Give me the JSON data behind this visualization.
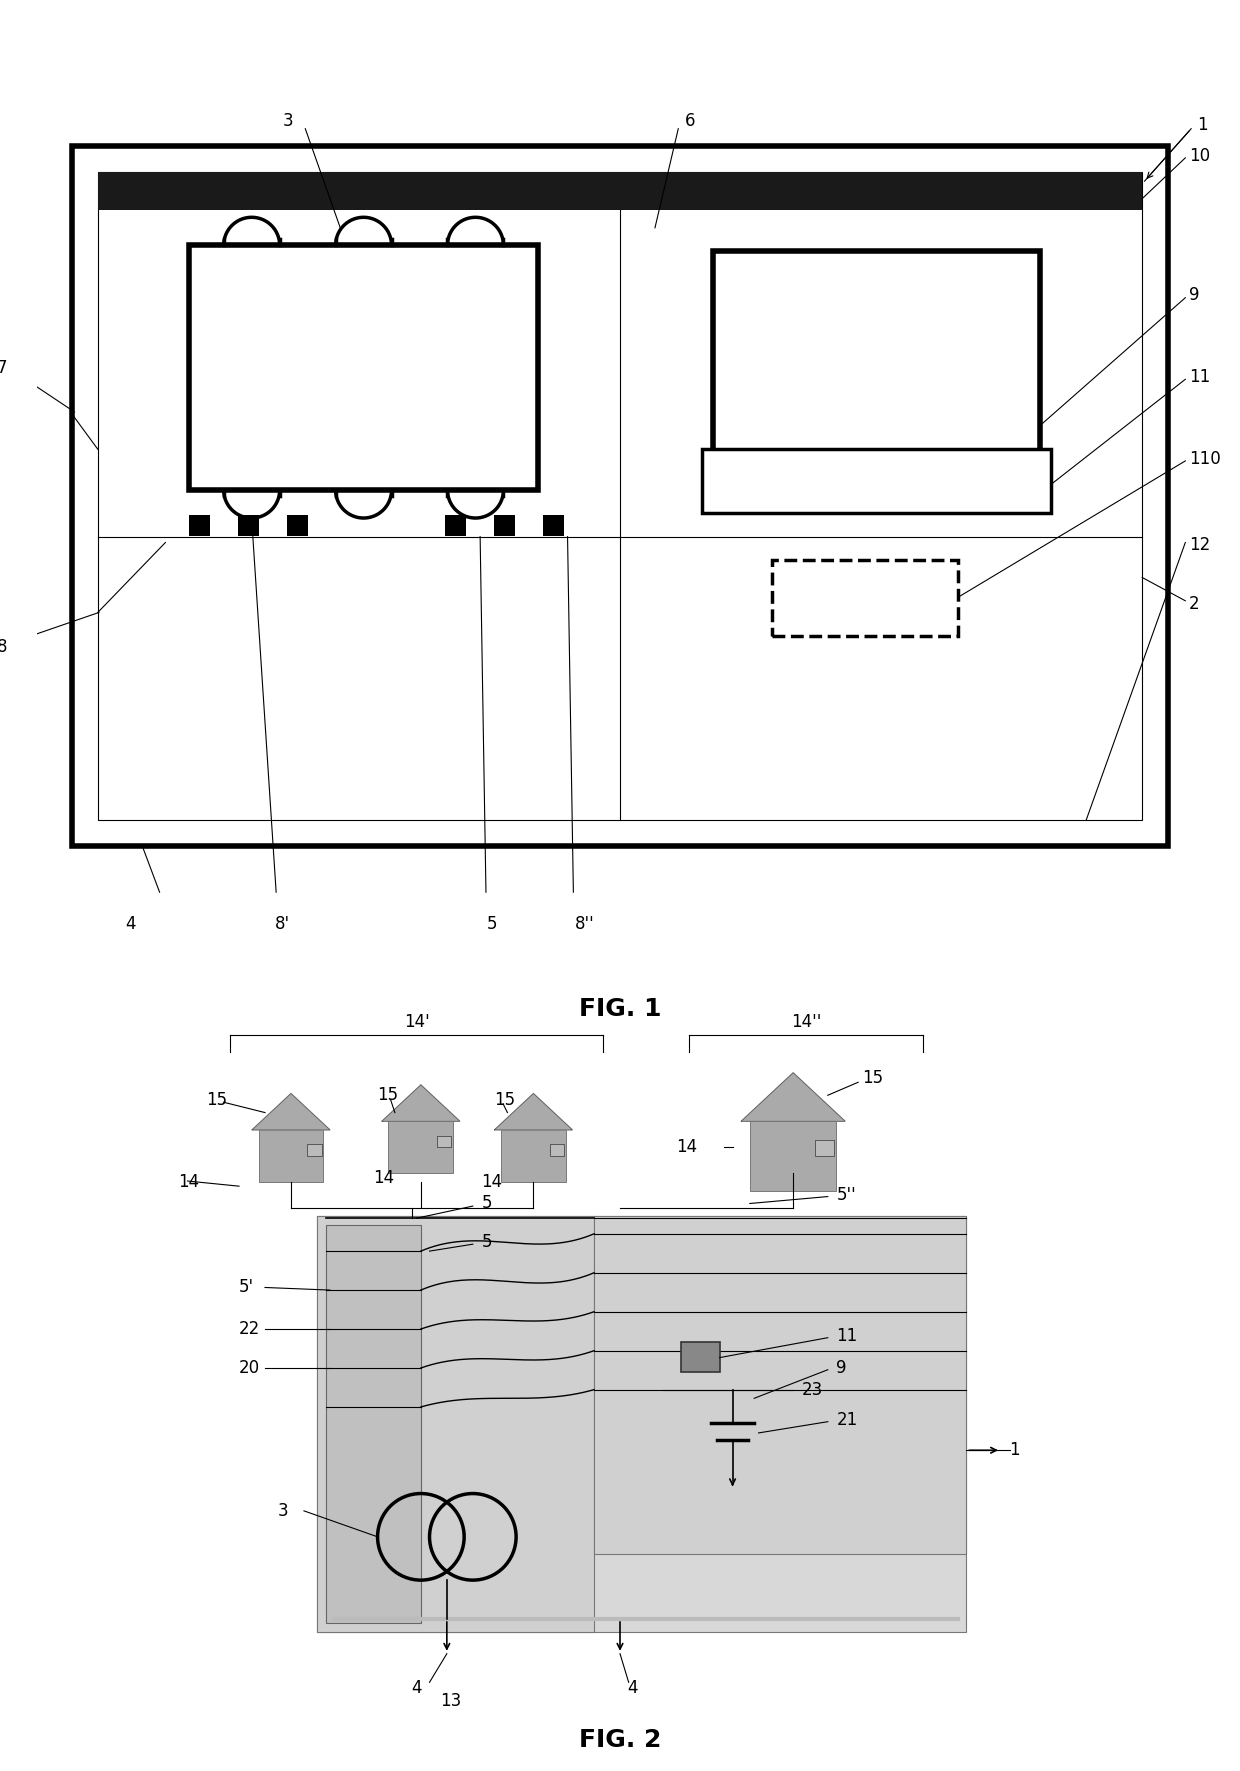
{
  "fig_width": 12.4,
  "fig_height": 17.71,
  "bg_color": "#ffffff",
  "lw_thick": 4.0,
  "lw_med": 2.5,
  "lw_thin": 1.2,
  "lw_vthin": 0.8,
  "label_fs": 12
}
